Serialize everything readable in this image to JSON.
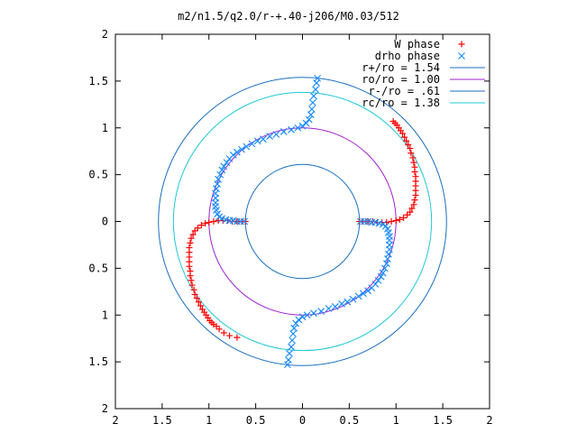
{
  "chart_data": {
    "type": "scatter",
    "title": "m2/n1.5/q2.0/r-+.40-j206/M0.03/512",
    "xlabel": "",
    "ylabel": "",
    "xlim": [
      -2,
      2
    ],
    "ylim": [
      -2,
      2
    ],
    "x_ticks": [
      "2",
      "1.5",
      "1",
      "0.5",
      "0",
      "0.5",
      "1",
      "1.5",
      "2"
    ],
    "y_ticks": [
      "2",
      "1.5",
      "1",
      "0.5",
      "0",
      "0.5",
      "1",
      "1.5",
      "2"
    ],
    "grid": false,
    "legend_position": "top-right",
    "circles": [
      {
        "name": "r+/ro = 1.54",
        "radius": 1.54,
        "color": "#1a6fc0"
      },
      {
        "name": "ro/ro = 1.00",
        "radius": 1.0,
        "color": "#a020d0"
      },
      {
        "name": "r-/ro = .61",
        "radius": 0.61,
        "color": "#1a6fc0"
      },
      {
        "name": "rc/ro = 1.38",
        "radius": 1.38,
        "color": "#20c8d8"
      }
    ],
    "series": [
      {
        "name": "W phase",
        "marker": "+",
        "color": "#ff0000",
        "points": [
          [
            0.61,
            0.0
          ],
          [
            0.65,
            0.0
          ],
          [
            0.7,
            0.0
          ],
          [
            0.75,
            0.0
          ],
          [
            0.8,
            -0.01
          ],
          [
            0.85,
            -0.01
          ],
          [
            0.9,
            -0.01
          ],
          [
            0.95,
            0.0
          ],
          [
            1.0,
            0.01
          ],
          [
            1.04,
            0.02
          ],
          [
            1.08,
            0.04
          ],
          [
            1.12,
            0.07
          ],
          [
            1.15,
            0.1
          ],
          [
            1.17,
            0.14
          ],
          [
            1.19,
            0.18
          ],
          [
            1.2,
            0.23
          ],
          [
            1.21,
            0.28
          ],
          [
            1.21,
            0.33
          ],
          [
            1.21,
            0.38
          ],
          [
            1.21,
            0.43
          ],
          [
            1.21,
            0.48
          ],
          [
            1.2,
            0.53
          ],
          [
            1.2,
            0.58
          ],
          [
            1.19,
            0.63
          ],
          [
            1.18,
            0.68
          ],
          [
            1.16,
            0.73
          ],
          [
            1.15,
            0.78
          ],
          [
            1.13,
            0.82
          ],
          [
            1.11,
            0.86
          ],
          [
            1.09,
            0.9
          ],
          [
            1.07,
            0.94
          ],
          [
            1.05,
            0.97
          ],
          [
            1.03,
            1.0
          ],
          [
            1.01,
            1.03
          ],
          [
            0.99,
            1.05
          ],
          [
            0.97,
            1.07
          ],
          [
            -0.61,
            0.0
          ],
          [
            -0.65,
            0.0
          ],
          [
            -0.7,
            0.0
          ],
          [
            -0.75,
            0.0
          ],
          [
            -0.8,
            0.01
          ],
          [
            -0.85,
            0.01
          ],
          [
            -0.9,
            0.01
          ],
          [
            -0.95,
            0.0
          ],
          [
            -1.0,
            -0.01
          ],
          [
            -1.04,
            -0.02
          ],
          [
            -1.08,
            -0.04
          ],
          [
            -1.12,
            -0.07
          ],
          [
            -1.15,
            -0.1
          ],
          [
            -1.17,
            -0.14
          ],
          [
            -1.19,
            -0.18
          ],
          [
            -1.2,
            -0.23
          ],
          [
            -1.21,
            -0.28
          ],
          [
            -1.21,
            -0.33
          ],
          [
            -1.21,
            -0.38
          ],
          [
            -1.21,
            -0.43
          ],
          [
            -1.21,
            -0.48
          ],
          [
            -1.2,
            -0.53
          ],
          [
            -1.2,
            -0.58
          ],
          [
            -1.19,
            -0.63
          ],
          [
            -1.18,
            -0.68
          ],
          [
            -1.16,
            -0.73
          ],
          [
            -1.15,
            -0.78
          ],
          [
            -1.13,
            -0.82
          ],
          [
            -1.11,
            -0.86
          ],
          [
            -1.09,
            -0.9
          ],
          [
            -1.07,
            -0.94
          ],
          [
            -1.05,
            -0.97
          ],
          [
            -1.03,
            -1.0
          ],
          [
            -1.01,
            -1.03
          ],
          [
            -0.99,
            -1.06
          ],
          [
            -0.97,
            -1.08
          ],
          [
            -0.95,
            -1.1
          ],
          [
            -0.92,
            -1.12
          ],
          [
            -0.89,
            -1.15
          ],
          [
            -0.84,
            -1.19
          ],
          [
            -0.78,
            -1.22
          ],
          [
            -0.7,
            -1.24
          ]
        ]
      },
      {
        "name": "drho phase",
        "marker": "x",
        "color": "#1a8cff",
        "points": [
          [
            0.62,
            0.0
          ],
          [
            0.66,
            0.0
          ],
          [
            0.7,
            0.0
          ],
          [
            0.74,
            -0.01
          ],
          [
            0.78,
            -0.01
          ],
          [
            0.82,
            -0.02
          ],
          [
            0.86,
            -0.03
          ],
          [
            0.89,
            -0.05
          ],
          [
            0.91,
            -0.08
          ],
          [
            0.92,
            -0.12
          ],
          [
            0.93,
            -0.16
          ],
          [
            0.93,
            -0.2
          ],
          [
            0.93,
            -0.25
          ],
          [
            0.93,
            -0.3
          ],
          [
            0.92,
            -0.35
          ],
          [
            0.91,
            -0.4
          ],
          [
            0.9,
            -0.45
          ],
          [
            0.88,
            -0.5
          ],
          [
            0.86,
            -0.55
          ],
          [
            0.84,
            -0.59
          ],
          [
            0.81,
            -0.63
          ],
          [
            0.78,
            -0.67
          ],
          [
            0.74,
            -0.71
          ],
          [
            0.7,
            -0.74
          ],
          [
            0.65,
            -0.77
          ],
          [
            0.6,
            -0.8
          ],
          [
            0.54,
            -0.83
          ],
          [
            0.48,
            -0.86
          ],
          [
            0.42,
            -0.88
          ],
          [
            0.35,
            -0.91
          ],
          [
            0.28,
            -0.93
          ],
          [
            0.2,
            -0.96
          ],
          [
            0.12,
            -0.98
          ],
          [
            0.05,
            -1.0
          ],
          [
            0.0,
            -1.02
          ],
          [
            -0.04,
            -1.05
          ],
          [
            -0.07,
            -1.09
          ],
          [
            -0.09,
            -1.14
          ],
          [
            -0.1,
            -1.2
          ],
          [
            -0.11,
            -1.27
          ],
          [
            -0.12,
            -1.34
          ],
          [
            -0.14,
            -1.41
          ],
          [
            -0.15,
            -1.48
          ],
          [
            -0.16,
            -1.53
          ],
          [
            -0.62,
            0.0
          ],
          [
            -0.66,
            0.0
          ],
          [
            -0.7,
            0.0
          ],
          [
            -0.74,
            0.01
          ],
          [
            -0.78,
            0.01
          ],
          [
            -0.82,
            0.02
          ],
          [
            -0.86,
            0.03
          ],
          [
            -0.89,
            0.05
          ],
          [
            -0.91,
            0.08
          ],
          [
            -0.92,
            0.12
          ],
          [
            -0.93,
            0.16
          ],
          [
            -0.93,
            0.2
          ],
          [
            -0.93,
            0.25
          ],
          [
            -0.93,
            0.3
          ],
          [
            -0.92,
            0.35
          ],
          [
            -0.91,
            0.4
          ],
          [
            -0.9,
            0.45
          ],
          [
            -0.88,
            0.5
          ],
          [
            -0.86,
            0.55
          ],
          [
            -0.84,
            0.59
          ],
          [
            -0.81,
            0.63
          ],
          [
            -0.78,
            0.67
          ],
          [
            -0.74,
            0.71
          ],
          [
            -0.7,
            0.74
          ],
          [
            -0.65,
            0.77
          ],
          [
            -0.6,
            0.8
          ],
          [
            -0.54,
            0.83
          ],
          [
            -0.48,
            0.86
          ],
          [
            -0.42,
            0.88
          ],
          [
            -0.35,
            0.91
          ],
          [
            -0.28,
            0.93
          ],
          [
            -0.2,
            0.96
          ],
          [
            -0.12,
            0.98
          ],
          [
            -0.05,
            1.0
          ],
          [
            0.0,
            1.02
          ],
          [
            0.04,
            1.05
          ],
          [
            0.07,
            1.09
          ],
          [
            0.09,
            1.14
          ],
          [
            0.1,
            1.2
          ],
          [
            0.11,
            1.27
          ],
          [
            0.12,
            1.34
          ],
          [
            0.14,
            1.41
          ],
          [
            0.15,
            1.48
          ],
          [
            0.16,
            1.53
          ]
        ]
      }
    ]
  }
}
